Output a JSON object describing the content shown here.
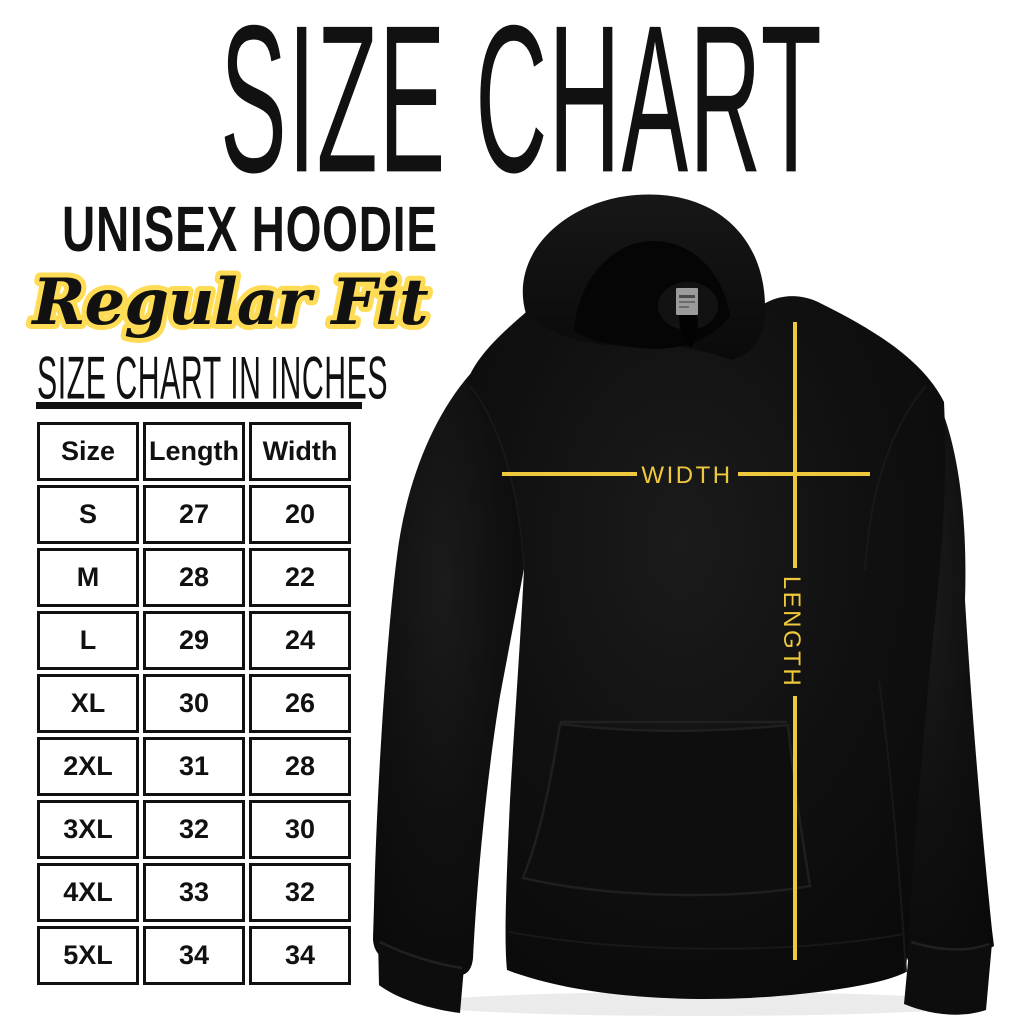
{
  "poster": {
    "title": "SIZE CHART",
    "product_name": "UNISEX HOODIE",
    "fit_label": "Regular Fit",
    "table_heading": "SIZE CHART IN INCHES"
  },
  "size_table": {
    "columns": [
      "Size",
      "Length",
      "Width"
    ],
    "rows": [
      [
        "S",
        "27",
        "20"
      ],
      [
        "M",
        "28",
        "22"
      ],
      [
        "L",
        "29",
        "24"
      ],
      [
        "XL",
        "30",
        "26"
      ],
      [
        "2XL",
        "31",
        "28"
      ],
      [
        "3XL",
        "32",
        "30"
      ],
      [
        "4XL",
        "33",
        "32"
      ],
      [
        "5XL",
        "34",
        "34"
      ]
    ]
  },
  "diagram": {
    "width_label": "WIDTH",
    "length_label": "LENGTH"
  },
  "colors": {
    "background": "#FFFFFF",
    "ink": "#111111",
    "measure_yellow": "#EFC93C",
    "script_outline_yellow": "#FFDC55",
    "hoodie_base": "#0D0D0D",
    "tag_gray": "#9B9B9B"
  }
}
